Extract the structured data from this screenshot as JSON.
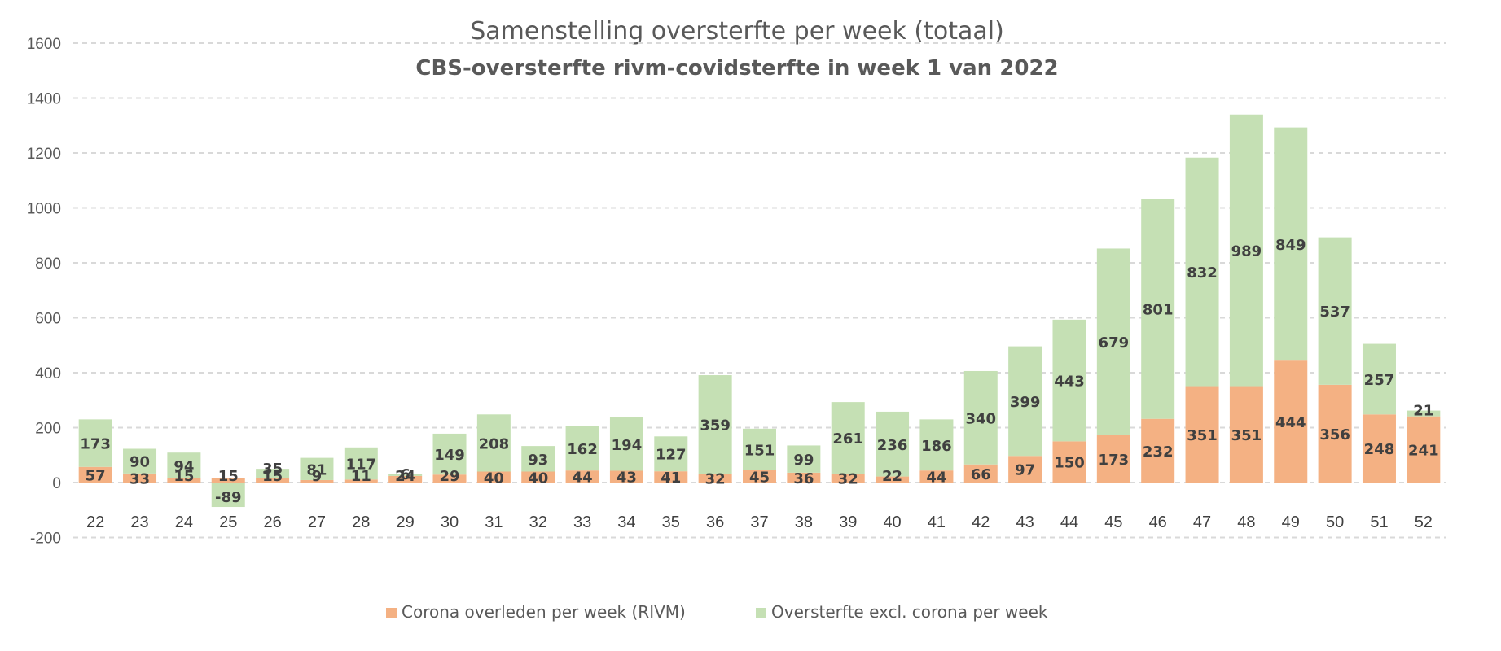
{
  "chart_data": {
    "type": "bar",
    "stacked": true,
    "title": "Samenstelling oversterfte per week (totaal)",
    "subtitle": "CBS-oversterfte rivm-covidsterfte in week 1 van 2022",
    "xlabel": "",
    "ylabel": "",
    "ylim": [
      -200,
      1600
    ],
    "yticks": [
      -200,
      0,
      200,
      400,
      600,
      800,
      1000,
      1200,
      1400,
      1600
    ],
    "grid": true,
    "legend_position": "bottom",
    "categories": [
      "22",
      "23",
      "24",
      "25",
      "26",
      "27",
      "28",
      "29",
      "30",
      "31",
      "32",
      "33",
      "34",
      "35",
      "36",
      "37",
      "38",
      "39",
      "40",
      "41",
      "42",
      "43",
      "44",
      "45",
      "46",
      "47",
      "48",
      "49",
      "50",
      "51",
      "52"
    ],
    "series": [
      {
        "name": "Corona overleden per week (RIVM)",
        "color": "#f4b183",
        "values": [
          57,
          33,
          15,
          15,
          15,
          9,
          11,
          24,
          29,
          40,
          40,
          44,
          43,
          41,
          32,
          45,
          36,
          32,
          22,
          44,
          66,
          97,
          150,
          173,
          232,
          351,
          351,
          444,
          356,
          248,
          241
        ]
      },
      {
        "name": "Oversterfte excl. corona per week",
        "color": "#c5e0b4",
        "values": [
          173,
          90,
          94,
          -89,
          35,
          81,
          117,
          6,
          149,
          208,
          93,
          162,
          194,
          127,
          359,
          151,
          99,
          261,
          236,
          186,
          340,
          399,
          443,
          679,
          801,
          832,
          989,
          849,
          537,
          257,
          21
        ]
      }
    ]
  }
}
